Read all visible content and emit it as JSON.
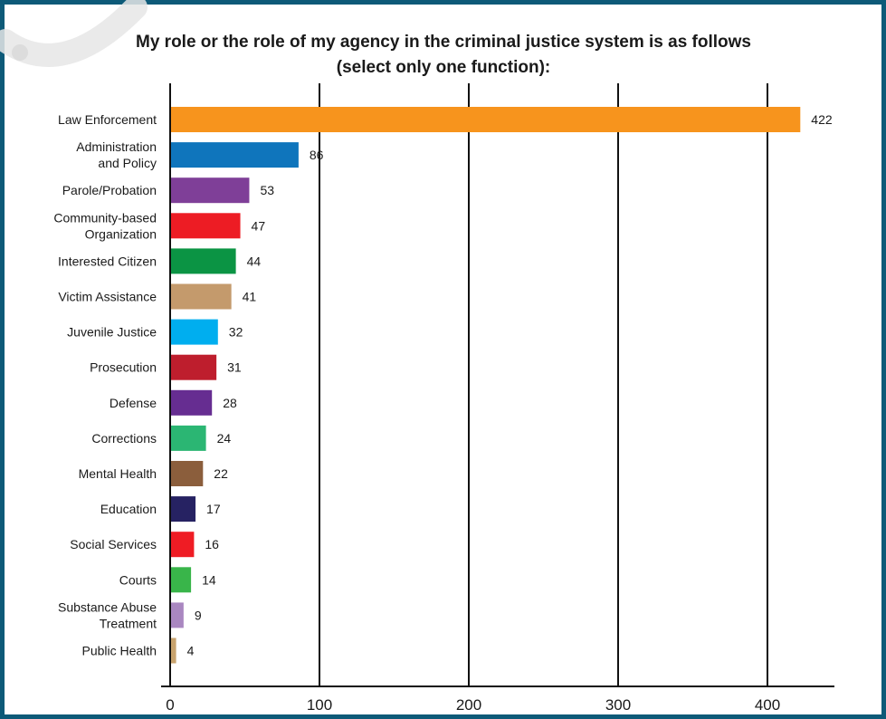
{
  "chart_data": {
    "type": "bar",
    "orientation": "horizontal",
    "title": "My role or the role of my agency in the criminal justice system is as follows (select only one function):",
    "title_lines": [
      "My role or the role of my agency in the criminal justice system is as follows",
      "(select only one function):"
    ],
    "categories": [
      "Law Enforcement",
      "Administration and Policy",
      "Parole/Probation",
      "Community-based Organization",
      "Interested Citizen",
      "Victim Assistance",
      "Juvenile Justice",
      "Prosecution",
      "Defense",
      "Corrections",
      "Mental Health",
      "Education",
      "Social Services",
      "Courts",
      "Substance Abuse Treatment",
      "Public Health"
    ],
    "category_lines": [
      [
        "Law Enforcement"
      ],
      [
        "Administration",
        "and Policy"
      ],
      [
        "Parole/Probation"
      ],
      [
        "Community-based",
        "Organization"
      ],
      [
        "Interested Citizen"
      ],
      [
        "Victim Assistance"
      ],
      [
        "Juvenile Justice"
      ],
      [
        "Prosecution"
      ],
      [
        "Defense"
      ],
      [
        "Corrections"
      ],
      [
        "Mental Health"
      ],
      [
        "Education"
      ],
      [
        "Social Services"
      ],
      [
        "Courts"
      ],
      [
        "Substance Abuse",
        "Treatment"
      ],
      [
        "Public Health"
      ]
    ],
    "values": [
      422,
      86,
      53,
      47,
      44,
      41,
      32,
      31,
      28,
      24,
      22,
      17,
      16,
      14,
      9,
      4
    ],
    "value_labels": [
      "422",
      "86",
      "53",
      "47",
      "44",
      "41",
      "32",
      "31",
      "28",
      "24",
      "22",
      "17",
      "16",
      "14",
      "9",
      "4"
    ],
    "colors": [
      "#f7941d",
      "#0f75bc",
      "#7f3f98",
      "#ed1c24",
      "#0b9444",
      "#c49a6c",
      "#00aeef",
      "#be1e2d",
      "#662d91",
      "#2bb673",
      "#8b5e3c",
      "#262262",
      "#ef1c24",
      "#39b54a",
      "#a987c0",
      "#c8a36e"
    ],
    "xlim": [
      0,
      440
    ],
    "xticks": [
      0,
      100,
      200,
      300,
      400
    ],
    "xtick_labels": [
      "0",
      "100",
      "200",
      "300",
      "400"
    ],
    "grid": "vertical",
    "xlabel": "",
    "ylabel": "",
    "frame_color": "#0d5a78"
  }
}
